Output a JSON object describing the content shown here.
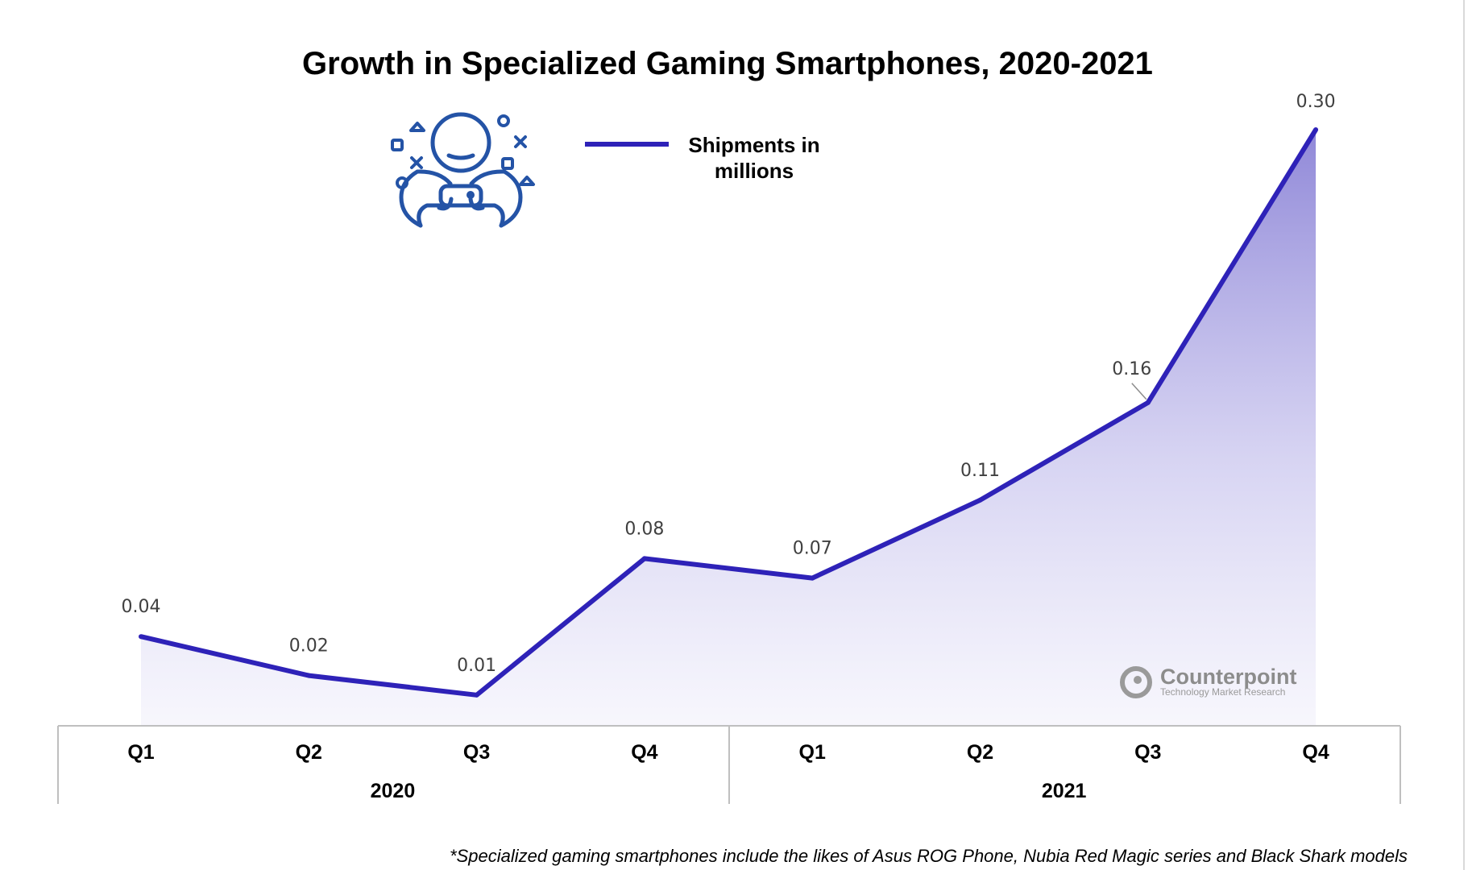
{
  "chart_data": {
    "type": "area",
    "title": "Growth in Specialized Gaming Smartphones, 2020-2021",
    "categories": [
      "Q1",
      "Q2",
      "Q3",
      "Q4",
      "Q1",
      "Q2",
      "Q3",
      "Q4"
    ],
    "groups": [
      {
        "label": "2020",
        "span": 4
      },
      {
        "label": "2021",
        "span": 4
      }
    ],
    "series": [
      {
        "name": "Shipments in millions",
        "values": [
          0.04,
          0.02,
          0.01,
          0.08,
          0.07,
          0.11,
          0.16,
          0.3
        ],
        "labels": [
          "0.04",
          "0.02",
          "0.01",
          "0.08",
          "0.07",
          "0.11",
          "0.16",
          "0.30"
        ],
        "color": "#2e22b8"
      }
    ],
    "ylim": [
      0,
      0.3
    ],
    "grid": false,
    "legend_position": "top-center",
    "xlabel": "",
    "ylabel": ""
  },
  "legend": {
    "line1": "Shipments in",
    "line2": "millions"
  },
  "icon": {
    "name": "gamer-icon",
    "color": "#2453a6"
  },
  "watermark": {
    "name": "Counterpoint",
    "tagline": "Technology Market Research"
  },
  "footnote": "*Specialized gaming smartphones include the likes of Asus ROG Phone, Nubia Red Magic series and Black Shark models",
  "colors": {
    "line": "#2e22b8",
    "fill_top": "#8e86d8",
    "axis": "#bfbfbf"
  }
}
